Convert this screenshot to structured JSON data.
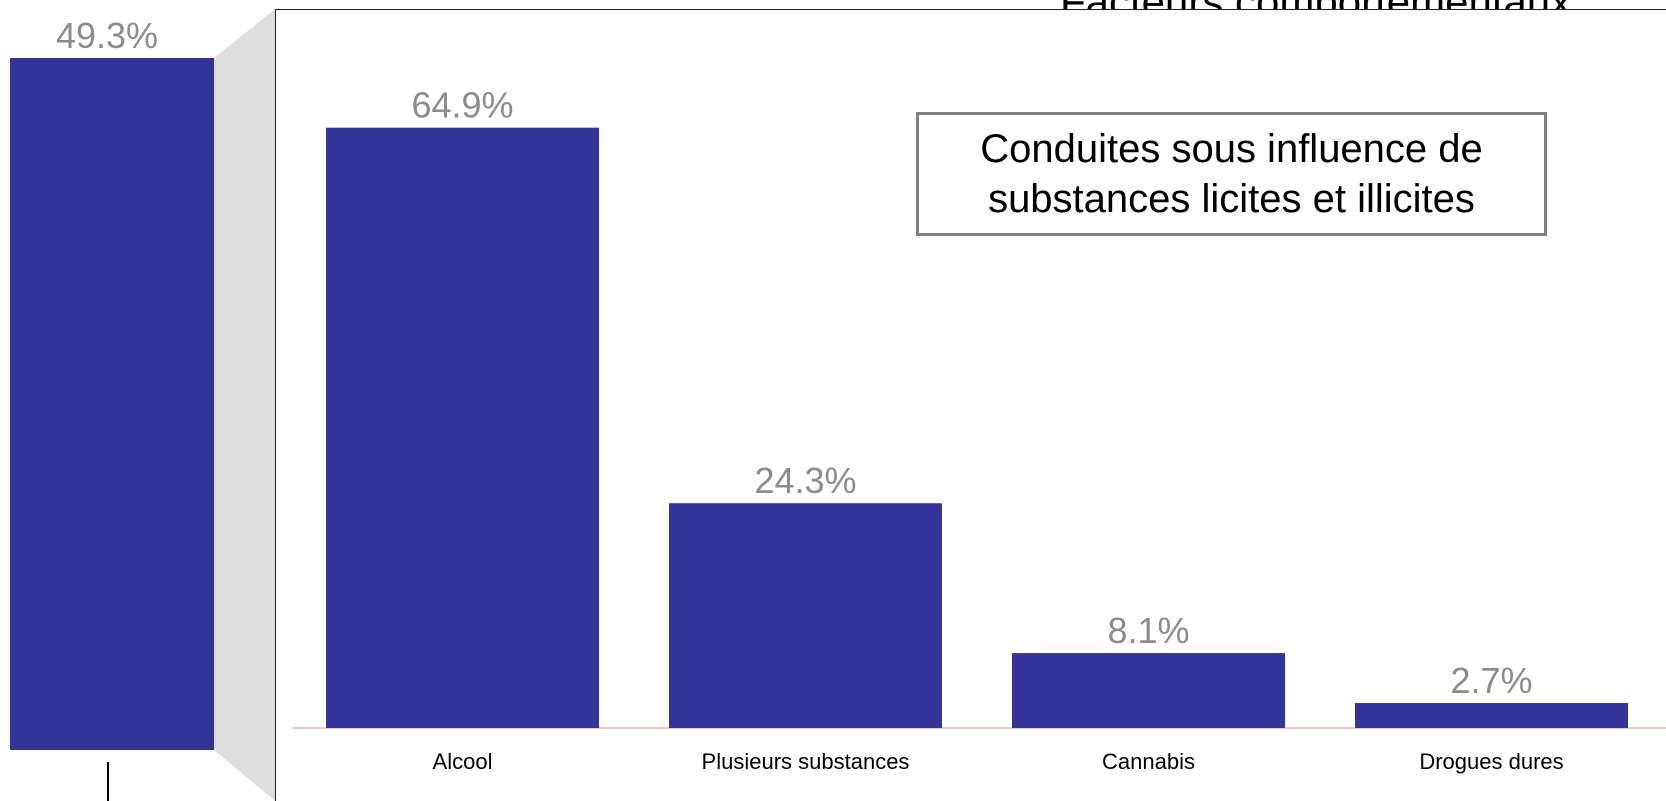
{
  "header": {
    "title_clipped": "Facteurs comportementaux"
  },
  "overview_bar": {
    "label": "49.3%",
    "value": 49.3,
    "color": "#343397",
    "label_color": "#8c8c8c"
  },
  "annotation": {
    "line1": "Conduites sous influence de",
    "line2": "substances licites et illicites"
  },
  "chart_data": {
    "type": "bar",
    "categories": [
      "Alcool",
      "Plusieurs substances",
      "Cannabis",
      "Drogues dures"
    ],
    "values": [
      64.9,
      24.3,
      8.1,
      2.7
    ],
    "value_labels": [
      "64.9%",
      "24.3%",
      "8.1%",
      "2.7%"
    ],
    "ylim": [
      0,
      70
    ],
    "grid": false,
    "bar_color": "#343397",
    "label_color": "#8c8c8c",
    "baseline_color": "#f2c9c9"
  }
}
